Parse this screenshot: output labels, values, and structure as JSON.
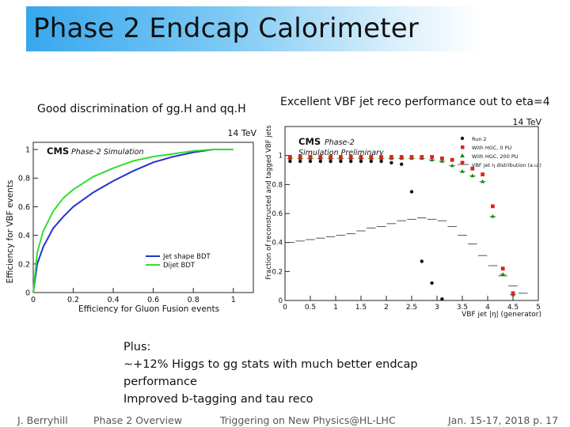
{
  "slide": {
    "title": "Phase 2 Endcap Calorimeter",
    "left_caption": "Good discrimination of gg.H and qq.H",
    "right_caption": "Excellent VBF jet reco performance out to eta=4",
    "plus_lines": [
      "Plus:",
      "~+12% Higgs to gg stats with much better endcap",
      "performance",
      "Improved b-tagging and tau reco"
    ],
    "footer": {
      "author": "J. Berryhill",
      "section": "Phase 2 Overview",
      "event": "Triggering on New Physics@HL-LHC",
      "date_page": "Jan. 15-17, 2018 p. 17"
    }
  },
  "colors": {
    "title_band": "#37a7ee",
    "blue_curve": "#2233cc",
    "green_curve": "#33dd33",
    "red_marker": "#dd2222",
    "green_marker": "#118811"
  },
  "chart_data": [
    {
      "type": "line",
      "energy_label": "14 TeV",
      "cms_label": "CMS",
      "sublabel": "Phase-2 Simulation",
      "xlabel": "Efficiency for Gluon Fusion events",
      "ylabel": "Efficiency for VBF events",
      "xlim": [
        0,
        1.1
      ],
      "ylim": [
        0,
        1.05
      ],
      "xticks": [
        "0",
        "0.2",
        "0.4",
        "0.6",
        "0.8",
        "1"
      ],
      "yticks": [
        "0",
        "0.2",
        "0.4",
        "0.6",
        "0.8",
        "1"
      ],
      "legend_position": "bottom-right",
      "series": [
        {
          "name": "Jet shape BDT",
          "x": [
            0,
            0.02,
            0.05,
            0.1,
            0.15,
            0.2,
            0.3,
            0.4,
            0.5,
            0.6,
            0.7,
            0.8,
            0.9,
            1.0
          ],
          "y": [
            0,
            0.2,
            0.32,
            0.45,
            0.53,
            0.6,
            0.7,
            0.78,
            0.85,
            0.91,
            0.95,
            0.98,
            1.0,
            1.0
          ]
        },
        {
          "name": "Dijet BDT",
          "x": [
            0,
            0.02,
            0.05,
            0.1,
            0.15,
            0.2,
            0.3,
            0.4,
            0.5,
            0.6,
            0.7,
            0.8,
            0.9,
            1.0
          ],
          "y": [
            0,
            0.28,
            0.43,
            0.57,
            0.66,
            0.72,
            0.81,
            0.87,
            0.92,
            0.95,
            0.97,
            0.99,
            1.0,
            1.0
          ]
        }
      ]
    },
    {
      "type": "scatter",
      "energy_label": "14 TeV",
      "cms_label": "CMS",
      "sublabel_1": "Phase-2",
      "sublabel_2": "Simulation Preliminary",
      "xlabel": "VBF jet |η| (generator)",
      "ylabel": "Fraction of reconstructed and tagged VBF jets",
      "xlim": [
        0,
        5
      ],
      "ylim": [
        0,
        1.2
      ],
      "xticks": [
        "0",
        "0.5",
        "1",
        "1.5",
        "2",
        "2.5",
        "3",
        "3.5",
        "4",
        "4.5",
        "5"
      ],
      "yticks": [
        "0",
        "0.2",
        "0.4",
        "0.6",
        "0.8",
        "1"
      ],
      "legend_position": "top-right",
      "series": [
        {
          "name": "Run 2",
          "x": [
            0.1,
            0.3,
            0.5,
            0.7,
            0.9,
            1.1,
            1.3,
            1.5,
            1.7,
            1.9,
            2.1,
            2.3,
            2.5,
            2.7,
            2.9,
            3.1
          ],
          "y": [
            0.96,
            0.96,
            0.96,
            0.96,
            0.96,
            0.96,
            0.96,
            0.96,
            0.96,
            0.96,
            0.95,
            0.94,
            0.75,
            0.27,
            0.12,
            0.01
          ]
        },
        {
          "name": "With HGC, 0 PU",
          "x": [
            0.1,
            0.3,
            0.5,
            0.7,
            0.9,
            1.1,
            1.3,
            1.5,
            1.7,
            1.9,
            2.1,
            2.3,
            2.5,
            2.7,
            2.9,
            3.1,
            3.3,
            3.5,
            3.7,
            3.9,
            4.1,
            4.3,
            4.5
          ],
          "y": [
            0.99,
            0.99,
            0.99,
            0.99,
            0.99,
            0.99,
            0.99,
            0.99,
            0.99,
            0.99,
            0.99,
            0.99,
            0.99,
            0.99,
            0.99,
            0.98,
            0.97,
            0.95,
            0.91,
            0.87,
            0.65,
            0.22,
            0.05
          ]
        },
        {
          "name": "With HGC, 200 PU",
          "x": [
            0.1,
            0.3,
            0.5,
            0.7,
            0.9,
            1.1,
            1.3,
            1.5,
            1.7,
            1.9,
            2.1,
            2.3,
            2.5,
            2.7,
            2.9,
            3.1,
            3.3,
            3.5,
            3.7,
            3.9,
            4.1,
            4.3,
            4.5
          ],
          "y": [
            0.98,
            0.98,
            0.98,
            0.98,
            0.98,
            0.98,
            0.98,
            0.98,
            0.98,
            0.98,
            0.98,
            0.98,
            0.98,
            0.98,
            0.97,
            0.96,
            0.93,
            0.89,
            0.86,
            0.82,
            0.58,
            0.18,
            0.04
          ]
        },
        {
          "name": "VBF jet η distribution (a.u.)",
          "x": [
            0.1,
            0.3,
            0.5,
            0.7,
            0.9,
            1.1,
            1.3,
            1.5,
            1.7,
            1.9,
            2.1,
            2.3,
            2.5,
            2.7,
            2.9,
            3.1,
            3.3,
            3.5,
            3.7,
            3.9,
            4.1,
            4.3,
            4.5,
            4.7
          ],
          "y": [
            0.4,
            0.41,
            0.42,
            0.43,
            0.44,
            0.45,
            0.46,
            0.48,
            0.5,
            0.51,
            0.53,
            0.55,
            0.56,
            0.57,
            0.56,
            0.55,
            0.51,
            0.45,
            0.39,
            0.31,
            0.24,
            0.17,
            0.1,
            0.05
          ]
        }
      ]
    }
  ]
}
